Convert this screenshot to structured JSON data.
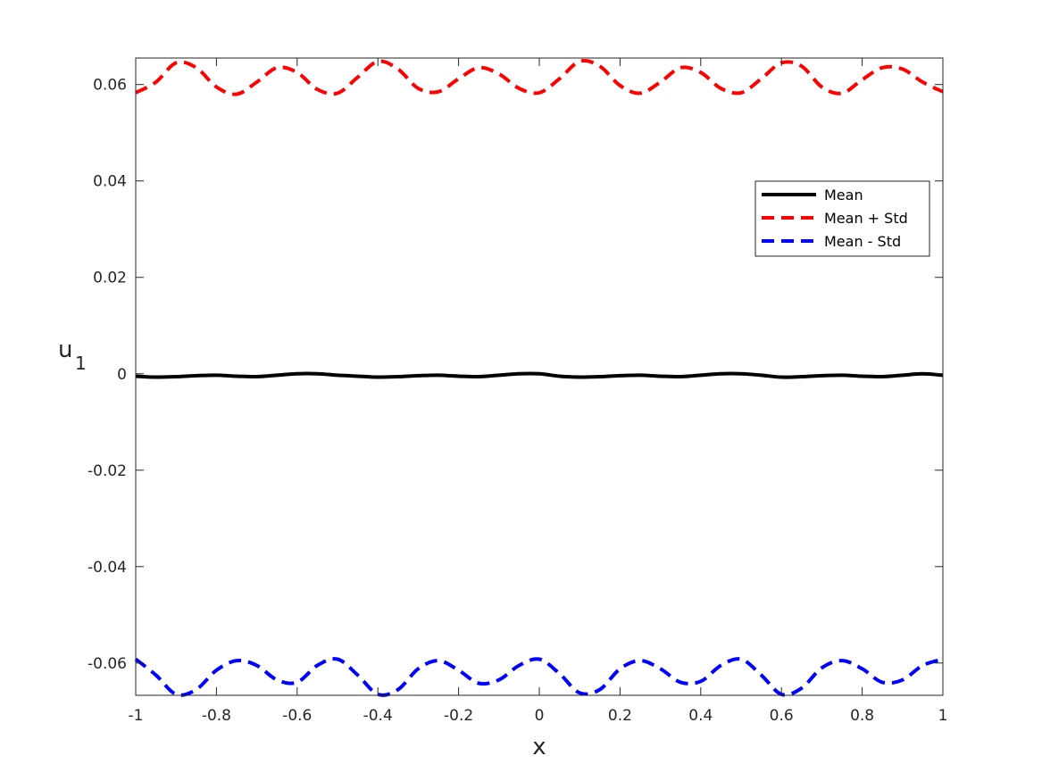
{
  "chart_data": {
    "type": "line",
    "xlabel": "x",
    "ylabel_main": "u",
    "ylabel_sub": "1",
    "xlim": [
      -1,
      1
    ],
    "ylim": [
      -0.0667,
      0.0655
    ],
    "x_ticks": [
      -1,
      -0.8,
      -0.6,
      -0.4,
      -0.2,
      0,
      0.2,
      0.4,
      0.6,
      0.8,
      1
    ],
    "x_tick_labels": [
      "-1",
      "-0.8",
      "-0.6",
      "-0.4",
      "-0.2",
      "0",
      "0.2",
      "0.4",
      "0.6",
      "0.8",
      "1"
    ],
    "y_ticks": [
      -0.06,
      -0.04,
      -0.02,
      0,
      0.02,
      0.04,
      0.06
    ],
    "y_tick_labels": [
      "-0.06",
      "-0.04",
      "-0.02",
      "0",
      "0.02",
      "0.04",
      "0.06"
    ],
    "grid": false,
    "legend_position": "upper-right",
    "x": [
      -1,
      -0.95,
      -0.9,
      -0.85,
      -0.8,
      -0.75,
      -0.7,
      -0.65,
      -0.6,
      -0.55,
      -0.5,
      -0.45,
      -0.4,
      -0.35,
      -0.3,
      -0.25,
      -0.2,
      -0.15,
      -0.1,
      -0.05,
      0,
      0.05,
      0.1,
      0.15,
      0.2,
      0.25,
      0.3,
      0.35,
      0.4,
      0.45,
      0.5,
      0.55,
      0.6,
      0.65,
      0.7,
      0.75,
      0.8,
      0.85,
      0.9,
      0.95,
      1
    ],
    "series": [
      {
        "name": "Mean",
        "color": "#000000",
        "dash": "solid",
        "values": [
          -0.0005,
          -0.0007,
          -0.0006,
          -0.0004,
          -0.0003,
          -0.0005,
          -0.0006,
          -0.0003,
          0.0,
          0.0,
          -0.0003,
          -0.0005,
          -0.0007,
          -0.0006,
          -0.0004,
          -0.0003,
          -0.0005,
          -0.0006,
          -0.0003,
          0.0,
          0.0,
          -0.0005,
          -0.0007,
          -0.0006,
          -0.0004,
          -0.0003,
          -0.0005,
          -0.0006,
          -0.0003,
          0.0,
          0.0,
          -0.0003,
          -0.0007,
          -0.0006,
          -0.0004,
          -0.0003,
          -0.0005,
          -0.0006,
          -0.0003,
          0.0,
          -0.0003
        ]
      },
      {
        "name": "Mean + Std",
        "color": "#ff0000",
        "dash": "dashed",
        "values": [
          0.0583,
          0.0605,
          0.0645,
          0.0635,
          0.0595,
          0.058,
          0.0605,
          0.0635,
          0.0625,
          0.059,
          0.0582,
          0.0615,
          0.0648,
          0.0632,
          0.0592,
          0.0585,
          0.0612,
          0.0635,
          0.0622,
          0.0592,
          0.0583,
          0.0612,
          0.0648,
          0.0638,
          0.0598,
          0.0582,
          0.0605,
          0.0635,
          0.0625,
          0.0592,
          0.0583,
          0.0612,
          0.0645,
          0.0638,
          0.0595,
          0.0582,
          0.061,
          0.0635,
          0.0632,
          0.0605,
          0.0585
        ]
      },
      {
        "name": "Mean - Std",
        "color": "#0000ff",
        "dash": "dashed",
        "values": [
          -0.0592,
          -0.0625,
          -0.0665,
          -0.0655,
          -0.0615,
          -0.0595,
          -0.0605,
          -0.0635,
          -0.064,
          -0.0605,
          -0.0592,
          -0.0625,
          -0.0665,
          -0.0655,
          -0.0612,
          -0.0595,
          -0.0615,
          -0.0642,
          -0.0635,
          -0.0605,
          -0.0592,
          -0.0622,
          -0.0662,
          -0.0655,
          -0.0612,
          -0.0595,
          -0.0612,
          -0.064,
          -0.0638,
          -0.0605,
          -0.0592,
          -0.0625,
          -0.0665,
          -0.0652,
          -0.061,
          -0.0595,
          -0.0612,
          -0.064,
          -0.0635,
          -0.0605,
          -0.0592
        ]
      }
    ]
  }
}
